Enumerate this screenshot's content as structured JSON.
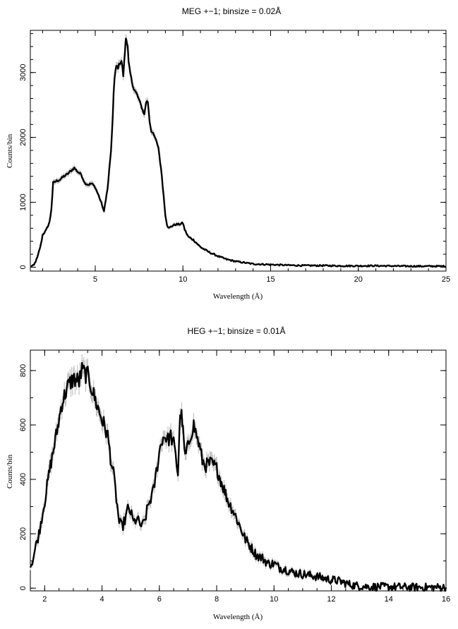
{
  "chart_data": [
    {
      "type": "line",
      "title": "MEG +−1; binsize = 0.02Å",
      "xlabel": "Wavelength (Å)",
      "ylabel": "Counts/bin",
      "xlim": [
        1.3,
        25
      ],
      "ylim": [
        -60,
        3650
      ],
      "xticks": [
        5,
        10,
        15,
        20,
        25
      ],
      "yticks": [
        0,
        1000,
        2000,
        3000
      ],
      "series": [
        {
          "x": [
            1.3,
            1.5,
            1.7,
            1.9,
            2.0,
            2.2,
            2.4,
            2.5,
            2.6,
            2.8,
            3.0,
            3.2,
            3.4,
            3.6,
            3.8,
            4.0,
            4.2,
            4.4,
            4.6,
            4.8,
            5.0,
            5.2,
            5.4,
            5.5,
            5.6,
            5.7,
            5.8,
            5.9,
            6.0,
            6.05,
            6.1,
            6.2,
            6.3,
            6.4,
            6.5,
            6.6,
            6.7,
            6.75,
            6.8,
            6.85,
            6.9,
            7.0,
            7.1,
            7.2,
            7.4,
            7.6,
            7.8,
            7.9,
            8.0,
            8.1,
            8.2,
            8.4,
            8.6,
            8.8,
            8.9,
            9.0,
            9.1,
            9.2,
            9.3,
            9.4,
            9.5,
            9.6,
            9.8,
            10.0,
            10.1,
            10.3,
            10.6,
            11.0,
            11.5,
            12.0,
            12.5,
            13.0,
            13.5,
            14.0,
            14.5,
            15.0,
            15.5,
            16,
            17,
            18,
            19,
            20,
            21,
            22,
            23,
            24,
            25
          ],
          "y": [
            10,
            30,
            150,
            350,
            500,
            570,
            700,
            900,
            1300,
            1330,
            1350,
            1400,
            1430,
            1480,
            1530,
            1470,
            1430,
            1300,
            1270,
            1290,
            1230,
            1100,
            950,
            850,
            1050,
            1200,
            1500,
            1800,
            2300,
            2700,
            2900,
            3100,
            3080,
            3150,
            3180,
            2950,
            3350,
            3530,
            3480,
            3400,
            3150,
            2980,
            2850,
            2750,
            2650,
            2500,
            2350,
            2550,
            2550,
            2250,
            2100,
            2000,
            1850,
            1400,
            1100,
            800,
            650,
            600,
            620,
            640,
            650,
            660,
            660,
            680,
            580,
            470,
            420,
            310,
            230,
            170,
            120,
            90,
            70,
            50,
            45,
            40,
            35,
            30,
            25,
            25,
            20,
            20,
            22,
            18,
            15,
            15,
            15
          ]
        }
      ]
    },
    {
      "type": "line",
      "title": "HEG +−1; binsize = 0.01Å",
      "xlabel": "Wavelength (Å)",
      "ylabel": "Counts/bin",
      "xlim": [
        1.5,
        16
      ],
      "ylim": [
        -10,
        875
      ],
      "xticks": [
        2,
        4,
        6,
        8,
        10,
        12,
        14,
        16
      ],
      "yticks": [
        0,
        200,
        400,
        600,
        800
      ],
      "series": [
        {
          "x": [
            1.5,
            1.6,
            1.7,
            1.8,
            1.9,
            2.0,
            2.2,
            2.4,
            2.6,
            2.8,
            3.0,
            3.2,
            3.3,
            3.4,
            3.5,
            3.6,
            3.8,
            4.0,
            4.2,
            4.3,
            4.4,
            4.5,
            4.6,
            4.7,
            4.8,
            4.9,
            5.0,
            5.1,
            5.2,
            5.3,
            5.4,
            5.5,
            5.6,
            5.7,
            5.8,
            5.9,
            6.0,
            6.1,
            6.2,
            6.3,
            6.4,
            6.5,
            6.6,
            6.65,
            6.7,
            6.75,
            6.8,
            6.85,
            6.9,
            7.0,
            7.1,
            7.2,
            7.3,
            7.4,
            7.5,
            7.6,
            7.8,
            8.0,
            8.2,
            8.4,
            8.6,
            8.8,
            9.0,
            9.2,
            9.4,
            9.6,
            9.8,
            10.0,
            10.2,
            10.4,
            10.6,
            10.8,
            11.0,
            11.2,
            11.4,
            11.6,
            11.8,
            12.0,
            12.2,
            12.4,
            12.6,
            12.8,
            13.0,
            13.2,
            13.5,
            14.0,
            14.5,
            15.0,
            15.5,
            16.0
          ],
          "y": [
            80,
            110,
            160,
            200,
            260,
            320,
            450,
            560,
            680,
            740,
            770,
            760,
            800,
            790,
            780,
            750,
            680,
            620,
            560,
            480,
            420,
            330,
            240,
            225,
            250,
            290,
            280,
            240,
            255,
            240,
            225,
            250,
            300,
            330,
            360,
            430,
            500,
            550,
            560,
            545,
            560,
            530,
            460,
            420,
            580,
            650,
            610,
            540,
            480,
            520,
            570,
            600,
            560,
            520,
            470,
            450,
            460,
            440,
            380,
            320,
            280,
            230,
            180,
            150,
            120,
            110,
            90,
            90,
            75,
            70,
            60,
            55,
            52,
            48,
            45,
            40,
            35,
            30,
            28,
            22,
            15,
            10,
            8,
            6,
            5,
            5,
            4,
            3,
            3,
            3
          ]
        }
      ]
    }
  ]
}
